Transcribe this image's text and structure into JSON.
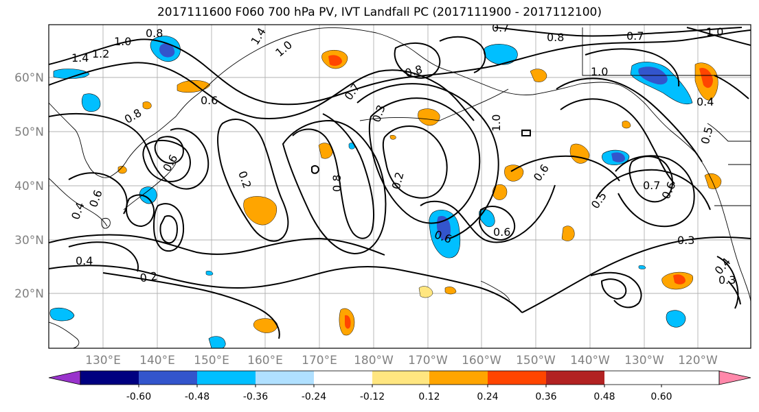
{
  "title": "2017111600 F060 700 hPa PV, IVT Landfall PC (2017111900 - 2017112100)",
  "map": {
    "lat_labels": [
      "60°N",
      "50°N",
      "40°N",
      "30°N",
      "20°N"
    ],
    "lon_labels": [
      "130°E",
      "140°E",
      "150°E",
      "160°E",
      "170°E",
      "180°W",
      "170°W",
      "160°W",
      "150°W",
      "140°W",
      "130°W",
      "120°W"
    ],
    "contour_labels": [
      "1.0",
      "0.8",
      "1.4",
      "1.2",
      "1.4",
      "1.0",
      "0.6",
      "0.8",
      "0.7",
      "0.8",
      "0.7",
      "0.8",
      "1.0",
      "1.0",
      "0.7",
      "0.3",
      "0.2",
      "0.8",
      "0.2",
      "0.6",
      "0.4",
      "0.4",
      "0.6",
      "0.2",
      "0.6",
      "0.6",
      "0.5",
      "0.7",
      "0.6",
      "0.4",
      "0.5",
      "0.3",
      "0.3",
      "0.4",
      "1.0",
      "0.6"
    ]
  },
  "colorbar": {
    "colors": [
      "#9933cc",
      "#000080",
      "#3355cc",
      "#00bfff",
      "#b0e0ff",
      "#ffffff",
      "#ffe680",
      "#ffa500",
      "#ff4500",
      "#b22222",
      "#ff88aa"
    ],
    "tick_labels": [
      "-0.60",
      "-0.48",
      "-0.36",
      "-0.24",
      "-0.12",
      "0.12",
      "0.24",
      "0.36",
      "0.48",
      "0.60"
    ]
  },
  "shading": {
    "negative_colors": [
      "#00bfff",
      "#3355cc"
    ],
    "positive_colors": [
      "#ffa500",
      "#ff4500",
      "#ffe680"
    ]
  }
}
